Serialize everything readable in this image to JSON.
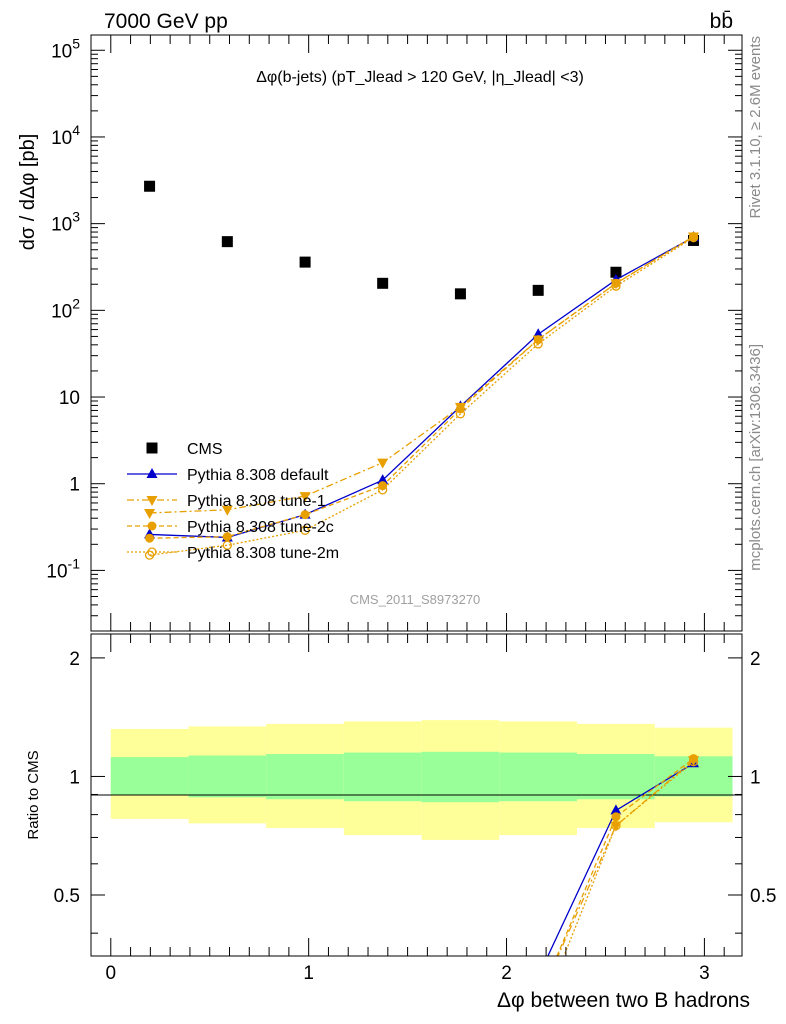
{
  "header": {
    "left": "7000 GeV pp",
    "right": "bb̄"
  },
  "side_labels": {
    "rivet": "Rivet 3.1.10, ≥ 2.6M events",
    "mcplots": "mcplots.cern.ch [arXiv:1306.3436]"
  },
  "watermark": "CMS_2011_S8973270",
  "colors": {
    "data": "#000000",
    "default": "#0000cc",
    "tunes": "#e8a000",
    "band_inner": "#99ff99",
    "band_outer": "#ffff99"
  },
  "chart_data": [
    {
      "type": "scatter",
      "panel": "main",
      "title": "Δφ(b-jets) (pT_Jlead > 120 GeV, |η_Jlead| <3)",
      "xlabel": "",
      "ylabel": "dσ / dΔφ [pb]",
      "xlim": [
        -0.1,
        3.19
      ],
      "ylim": [
        0.02,
        150000
      ],
      "yscale": "log",
      "y_tick_labels": [
        "10^-1",
        "1",
        "10",
        "10^2",
        "10^3",
        "10^4",
        "10^5"
      ],
      "legend_position": "center-left",
      "series": [
        {
          "name": "CMS",
          "marker": "square",
          "x": [
            0.196,
            0.589,
            0.982,
            1.374,
            1.767,
            2.16,
            2.553,
            2.945
          ],
          "y": [
            2700,
            620,
            360,
            205,
            155,
            170,
            275,
            640
          ]
        },
        {
          "name": "Pythia 8.308 default",
          "marker": "triangle-up",
          "line": "solid",
          "x": [
            0.196,
            0.589,
            0.982,
            1.374,
            1.767,
            2.16,
            2.553,
            2.945
          ],
          "y": [
            0.26,
            0.24,
            0.44,
            1.1,
            7.8,
            53,
            225,
            700
          ]
        },
        {
          "name": "Pythia 8.308 tune-1",
          "marker": "triangle-down",
          "line": "dashdot",
          "x": [
            0.196,
            0.589,
            0.982,
            1.374,
            1.767,
            2.16,
            2.553,
            2.945
          ],
          "y": [
            0.46,
            0.5,
            0.72,
            1.75,
            7.7,
            46,
            205,
            710
          ]
        },
        {
          "name": "Pythia 8.308 tune-2c",
          "marker": "circle",
          "line": "dashed",
          "x": [
            0.196,
            0.589,
            0.982,
            1.374,
            1.767,
            2.16,
            2.553,
            2.945
          ],
          "y": [
            0.235,
            0.245,
            0.44,
            0.95,
            7.3,
            46,
            205,
            710
          ]
        },
        {
          "name": "Pythia 8.308 tune-2m",
          "marker": "open-circle",
          "line": "dotted",
          "x": [
            0.196,
            0.589,
            0.982,
            1.374,
            1.767,
            2.16,
            2.553,
            2.945
          ],
          "y": [
            0.15,
            0.195,
            0.29,
            0.85,
            6.4,
            41,
            190,
            690
          ]
        }
      ]
    },
    {
      "type": "line",
      "panel": "ratio",
      "xlabel": "Δφ between two B hadrons",
      "ylabel": "Ratio to CMS",
      "xlim": [
        -0.1,
        3.19
      ],
      "ylim": [
        0.35,
        2.3
      ],
      "x_tick_labels": [
        "0",
        "1",
        "2",
        "3"
      ],
      "y_tick_labels": [
        "0.5",
        "1",
        "2"
      ],
      "bands": {
        "edges": [
          0.0,
          0.393,
          0.785,
          1.178,
          1.571,
          1.963,
          2.356,
          2.749,
          3.142
        ],
        "inner_low": [
          0.9,
          0.885,
          0.875,
          0.865,
          0.86,
          0.865,
          0.875,
          0.89
        ],
        "inner_high": [
          1.12,
          1.13,
          1.14,
          1.15,
          1.155,
          1.15,
          1.14,
          1.125
        ],
        "outer_low": [
          0.78,
          0.76,
          0.74,
          0.71,
          0.69,
          0.71,
          0.74,
          0.765
        ],
        "outer_high": [
          1.32,
          1.34,
          1.36,
          1.38,
          1.39,
          1.38,
          1.36,
          1.33
        ]
      },
      "series": [
        {
          "name": "Pythia 8.308 default",
          "x": [
            2.16,
            2.553,
            2.945
          ],
          "y": [
            0.31,
            0.82,
            1.08
          ]
        },
        {
          "name": "Pythia 8.308 tune-1",
          "x": [
            2.16,
            2.553,
            2.945
          ],
          "y": [
            0.27,
            0.75,
            1.1
          ]
        },
        {
          "name": "Pythia 8.308 tune-2c",
          "x": [
            2.16,
            2.553,
            2.945
          ],
          "y": [
            0.27,
            0.79,
            1.11
          ]
        },
        {
          "name": "Pythia 8.308 tune-2m",
          "x": [
            2.16,
            2.553,
            2.945
          ],
          "y": [
            0.24,
            0.75,
            1.09
          ]
        }
      ]
    }
  ]
}
